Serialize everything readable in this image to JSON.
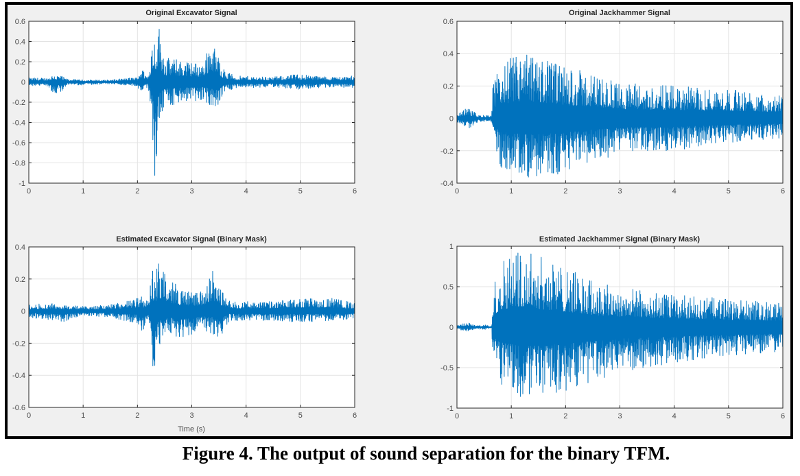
{
  "figure": {
    "caption": "Figure 4. The output of sound separation for the binary TFM.",
    "signal_color": "#0072bd",
    "background_color": "#f0f0f0",
    "grid_color": "#e3e3e3"
  },
  "chart_data": [
    {
      "type": "line",
      "title": "Original Excavator Signal",
      "xlabel": "",
      "ylabel": "",
      "xlim": [
        0,
        6
      ],
      "ylim": [
        -1,
        0.6
      ],
      "xticks": [
        "0",
        "1",
        "2",
        "3",
        "4",
        "5",
        "6"
      ],
      "yticks": [
        "0.6",
        "0.4",
        "0.2",
        "0",
        "-0.2",
        "-0.4",
        "-0.6",
        "-0.8",
        "-1"
      ],
      "grid": true,
      "envelope": {
        "x": [
          0,
          0.35,
          0.45,
          0.6,
          0.7,
          1.0,
          1.5,
          2.0,
          2.05,
          2.2,
          2.28,
          2.32,
          2.4,
          2.5,
          2.8,
          3.2,
          3.35,
          3.5,
          3.6,
          3.8,
          4.5,
          5.0,
          5.5,
          6.0
        ],
        "max": [
          0.04,
          0.04,
          0.08,
          0.06,
          0.03,
          0.02,
          0.02,
          0.05,
          0.15,
          0.06,
          0.5,
          0.45,
          0.57,
          0.25,
          0.22,
          0.18,
          0.42,
          0.25,
          0.12,
          0.06,
          0.05,
          0.08,
          0.05,
          0.06
        ],
        "min": [
          -0.04,
          -0.04,
          -0.12,
          -0.1,
          -0.03,
          -0.03,
          -0.02,
          -0.04,
          -0.16,
          -0.05,
          -0.6,
          -1.0,
          -0.4,
          -0.25,
          -0.22,
          -0.18,
          -0.25,
          -0.27,
          -0.1,
          -0.06,
          -0.05,
          -0.08,
          -0.05,
          -0.06
        ]
      }
    },
    {
      "type": "line",
      "title": "Original Jackhammer Signal",
      "xlabel": "",
      "ylabel": "",
      "xlim": [
        0,
        6
      ],
      "ylim": [
        -0.4,
        0.6
      ],
      "xticks": [
        "0",
        "1",
        "2",
        "3",
        "4",
        "5",
        "6"
      ],
      "yticks": [
        "0.6",
        "0.4",
        "0.2",
        "0",
        "-0.2",
        "-0.4"
      ],
      "grid": true,
      "envelope": {
        "x": [
          0,
          0.2,
          0.4,
          0.64,
          0.66,
          0.8,
          1.2,
          1.6,
          2.0,
          2.5,
          3.0,
          4.0,
          5.0,
          6.0
        ],
        "max": [
          0.02,
          0.07,
          0.02,
          0.02,
          0.2,
          0.35,
          0.41,
          0.38,
          0.32,
          0.28,
          0.22,
          0.2,
          0.18,
          0.15
        ],
        "min": [
          -0.03,
          -0.07,
          -0.02,
          -0.02,
          -0.18,
          -0.3,
          -0.37,
          -0.38,
          -0.33,
          -0.27,
          -0.22,
          -0.2,
          -0.15,
          -0.12
        ]
      }
    },
    {
      "type": "line",
      "title": "Estimated Excavator Signal (Binary Mask)",
      "xlabel": "Time (s)",
      "ylabel": "",
      "xlim": [
        0,
        6
      ],
      "ylim": [
        -0.6,
        0.4
      ],
      "xticks": [
        "0",
        "1",
        "2",
        "3",
        "4",
        "5",
        "6"
      ],
      "yticks": [
        "0.4",
        "0.2",
        "0",
        "-0.2",
        "-0.4",
        "-0.6"
      ],
      "grid": true,
      "envelope": {
        "x": [
          0,
          0.45,
          0.6,
          1.0,
          1.5,
          2.0,
          2.05,
          2.2,
          2.28,
          2.3,
          2.4,
          2.6,
          2.8,
          3.2,
          3.38,
          3.5,
          3.7,
          4.5,
          5.0,
          5.6,
          6.0
        ],
        "max": [
          0.04,
          0.05,
          0.04,
          0.03,
          0.04,
          0.08,
          0.1,
          0.06,
          0.27,
          0.2,
          0.31,
          0.2,
          0.14,
          0.12,
          0.26,
          0.15,
          0.06,
          0.06,
          0.08,
          0.08,
          0.05
        ],
        "min": [
          -0.04,
          -0.06,
          -0.07,
          -0.03,
          -0.04,
          -0.08,
          -0.18,
          -0.08,
          -0.32,
          -0.51,
          -0.23,
          -0.15,
          -0.19,
          -0.12,
          -0.14,
          -0.19,
          -0.06,
          -0.06,
          -0.07,
          -0.06,
          -0.05
        ]
      }
    },
    {
      "type": "line",
      "title": "Estimated Jackhammer Signal (Binary Mask)",
      "xlabel": "",
      "ylabel": "",
      "xlim": [
        0,
        6
      ],
      "ylim": [
        -1,
        1
      ],
      "xticks": [
        "0",
        "1",
        "2",
        "3",
        "4",
        "5",
        "6"
      ],
      "yticks": [
        "1",
        "0.5",
        "0",
        "-0.5",
        "-1"
      ],
      "grid": true,
      "envelope": {
        "x": [
          0,
          0.2,
          0.35,
          0.5,
          0.64,
          0.66,
          0.8,
          1.2,
          1.6,
          2.0,
          2.4,
          3.0,
          4.0,
          5.0,
          6.0
        ],
        "max": [
          0.02,
          0.06,
          0.02,
          0.03,
          0.01,
          0.5,
          0.85,
          1.0,
          0.85,
          0.75,
          0.6,
          0.5,
          0.4,
          0.35,
          0.3
        ],
        "min": [
          -0.02,
          -0.06,
          -0.02,
          -0.03,
          -0.01,
          -0.45,
          -0.7,
          -0.95,
          -0.85,
          -0.8,
          -0.7,
          -0.55,
          -0.45,
          -0.35,
          -0.3
        ]
      }
    }
  ]
}
